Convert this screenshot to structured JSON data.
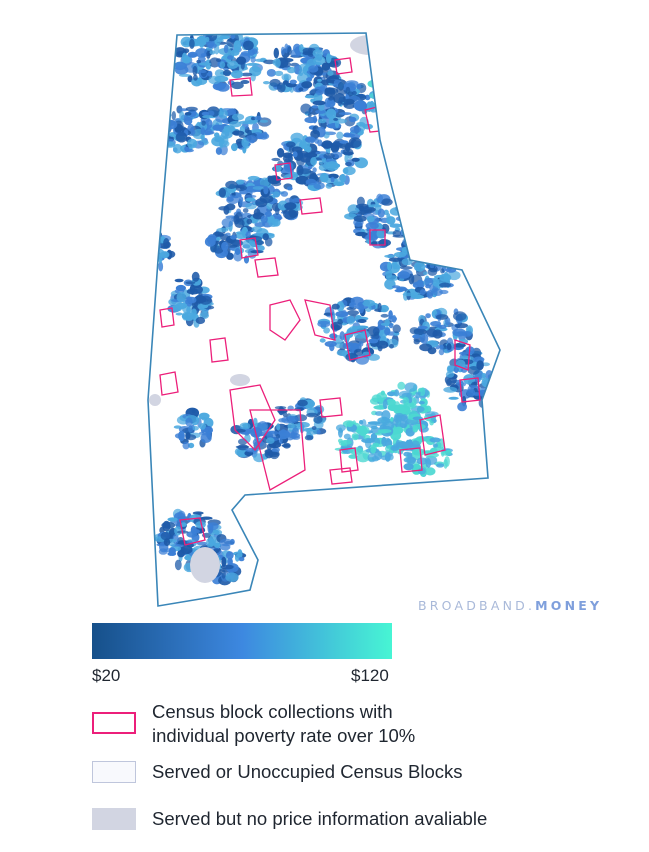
{
  "watermark": {
    "part1": "BROADBAND.",
    "part2": "MONEY"
  },
  "map": {
    "state_outline_color": "#3a86b8",
    "poverty_outline_color": "#ec1f7a",
    "no_price_color": "#d2d5e2",
    "price_colors": [
      "#1e5aa8",
      "#3b7fd6",
      "#4aa8df",
      "#4cd8d1"
    ]
  },
  "legend": {
    "gradient_start_color": "#16508a",
    "gradient_mid_color": "#3d88e0",
    "gradient_end_color": "#47f5d4",
    "min_label": "$20",
    "max_label": "$120",
    "items": [
      {
        "label_line1": "Census block collections with",
        "label_line2": "individual poverty rate over 10%"
      },
      {
        "label_line1": "Served or Unoccupied Census Blocks"
      },
      {
        "label_line1": "Served but no price information avaliable"
      }
    ]
  }
}
